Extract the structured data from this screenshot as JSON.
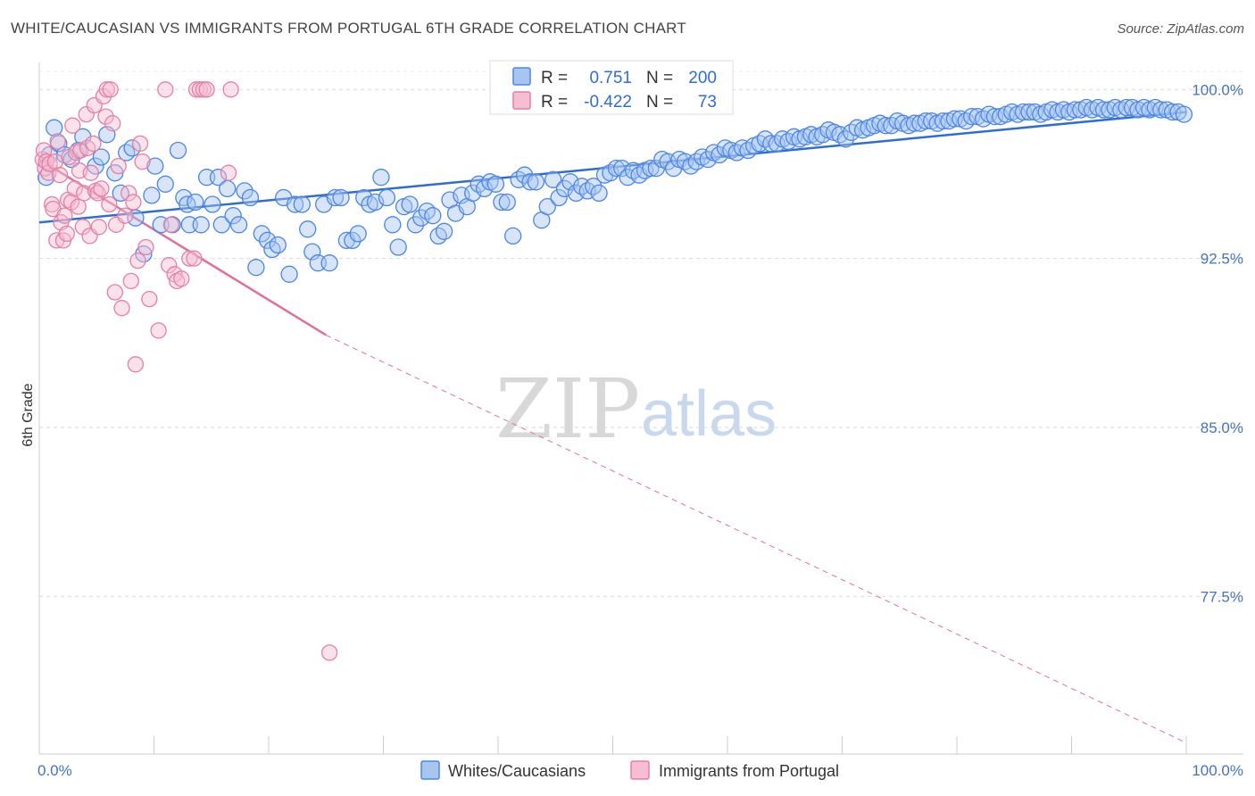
{
  "title": "WHITE/CAUCASIAN VS IMMIGRANTS FROM PORTUGAL 6TH GRADE CORRELATION CHART",
  "source": "Source: ZipAtlas.com",
  "watermark": {
    "zip": "ZIP",
    "atlas": "atlas"
  },
  "colors": {
    "blue": "#4a86e8",
    "blue_fill": "#a8c5f0",
    "blue_line": "#2f6ecf",
    "pink": "#e57fa3",
    "pink_fill": "#f7bdd0",
    "pink_line": "#e0709a",
    "grid": "#d9d9d9",
    "tick_text": "#4472c4"
  },
  "legend": {
    "r_label": "R =",
    "n_label": "N =",
    "series": [
      {
        "r": "0.751",
        "n": "200"
      },
      {
        "r": "-0.422",
        "n": "73"
      }
    ]
  },
  "chart_data": {
    "type": "scatter",
    "title": "WHITE/CAUCASIAN VS IMMIGRANTS FROM PORTUGAL 6TH GRADE CORRELATION CHART",
    "xlabel": "",
    "ylabel": "6th Grade",
    "xlim": [
      0,
      100
    ],
    "ylim": [
      70.5,
      101.2
    ],
    "x_tick_labels": [
      "0.0%",
      "100.0%"
    ],
    "y_ticks": [
      100.0,
      92.5,
      85.0,
      77.5
    ],
    "y_tick_labels": [
      "100.0%",
      "92.5%",
      "85.0%",
      "77.5%"
    ],
    "grid": true,
    "legend_position": "top-center",
    "series": [
      {
        "name": "Whites/Caucasians",
        "color": "#4a86e8",
        "trend": {
          "x": [
            0,
            100
          ],
          "y": [
            94.1,
            99.0
          ]
        },
        "points": [
          [
            0.6,
            96.1
          ],
          [
            0.9,
            97.1
          ],
          [
            1.3,
            98.3
          ],
          [
            1.7,
            97.6
          ],
          [
            2.2,
            97.1
          ],
          [
            2.8,
            96.9
          ],
          [
            3.4,
            97.3
          ],
          [
            3.8,
            97.9
          ],
          [
            4.9,
            96.6
          ],
          [
            5.4,
            97.0
          ],
          [
            5.9,
            98.0
          ],
          [
            6.6,
            96.3
          ],
          [
            7.1,
            95.4
          ],
          [
            7.6,
            97.2
          ],
          [
            8.1,
            97.4
          ],
          [
            8.4,
            94.3
          ],
          [
            9.1,
            92.7
          ],
          [
            9.8,
            95.3
          ],
          [
            10.1,
            96.6
          ],
          [
            10.6,
            94.0
          ],
          [
            11.0,
            95.8
          ],
          [
            11.6,
            94.0
          ],
          [
            12.1,
            97.3
          ],
          [
            12.6,
            95.2
          ],
          [
            12.9,
            94.9
          ],
          [
            13.1,
            94.0
          ],
          [
            13.6,
            95.0
          ],
          [
            14.1,
            94.0
          ],
          [
            14.6,
            96.1
          ],
          [
            15.1,
            94.9
          ],
          [
            15.6,
            96.1
          ],
          [
            15.9,
            94.0
          ],
          [
            16.4,
            95.6
          ],
          [
            16.9,
            94.4
          ],
          [
            17.4,
            94.0
          ],
          [
            17.9,
            95.5
          ],
          [
            18.4,
            95.2
          ],
          [
            18.9,
            92.1
          ],
          [
            19.4,
            93.6
          ],
          [
            19.9,
            93.3
          ],
          [
            20.3,
            92.9
          ],
          [
            20.8,
            93.1
          ],
          [
            21.3,
            95.2
          ],
          [
            21.8,
            91.8
          ],
          [
            22.3,
            94.9
          ],
          [
            22.9,
            94.9
          ],
          [
            23.4,
            93.8
          ],
          [
            23.8,
            92.8
          ],
          [
            24.3,
            92.3
          ],
          [
            24.8,
            94.9
          ],
          [
            25.3,
            92.3
          ],
          [
            25.8,
            95.2
          ],
          [
            26.3,
            95.2
          ],
          [
            26.8,
            93.3
          ],
          [
            27.3,
            93.3
          ],
          [
            27.8,
            93.6
          ],
          [
            28.3,
            95.2
          ],
          [
            28.8,
            94.9
          ],
          [
            29.3,
            95.0
          ],
          [
            29.8,
            96.1
          ],
          [
            30.3,
            95.2
          ],
          [
            30.8,
            94.0
          ],
          [
            31.3,
            93.0
          ],
          [
            31.8,
            94.8
          ],
          [
            32.3,
            94.9
          ],
          [
            32.8,
            94.0
          ],
          [
            33.3,
            94.3
          ],
          [
            33.8,
            94.6
          ],
          [
            34.3,
            94.4
          ],
          [
            34.8,
            93.5
          ],
          [
            35.3,
            93.7
          ],
          [
            35.8,
            95.1
          ],
          [
            36.3,
            94.5
          ],
          [
            36.8,
            95.3
          ],
          [
            37.3,
            94.8
          ],
          [
            37.8,
            95.4
          ],
          [
            38.3,
            95.8
          ],
          [
            38.8,
            95.6
          ],
          [
            39.3,
            95.9
          ],
          [
            39.8,
            95.8
          ],
          [
            40.3,
            95.0
          ],
          [
            40.8,
            95.0
          ],
          [
            41.3,
            93.5
          ],
          [
            41.8,
            96.0
          ],
          [
            42.3,
            96.2
          ],
          [
            42.8,
            95.9
          ],
          [
            43.3,
            95.9
          ],
          [
            43.8,
            94.2
          ],
          [
            44.3,
            94.8
          ],
          [
            44.8,
            96.0
          ],
          [
            45.3,
            95.2
          ],
          [
            45.8,
            95.6
          ],
          [
            46.3,
            95.9
          ],
          [
            46.8,
            95.4
          ],
          [
            47.3,
            95.7
          ],
          [
            47.8,
            95.5
          ],
          [
            48.3,
            95.7
          ],
          [
            48.8,
            95.4
          ],
          [
            49.3,
            96.2
          ],
          [
            49.8,
            96.3
          ],
          [
            50.3,
            96.5
          ],
          [
            50.8,
            96.5
          ],
          [
            51.3,
            96.1
          ],
          [
            51.8,
            96.4
          ],
          [
            52.3,
            96.2
          ],
          [
            52.8,
            96.4
          ],
          [
            53.3,
            96.5
          ],
          [
            53.8,
            96.5
          ],
          [
            54.3,
            96.9
          ],
          [
            54.8,
            96.8
          ],
          [
            55.3,
            96.5
          ],
          [
            55.8,
            96.9
          ],
          [
            56.3,
            96.8
          ],
          [
            56.8,
            96.6
          ],
          [
            57.3,
            96.8
          ],
          [
            57.8,
            97.0
          ],
          [
            58.3,
            96.9
          ],
          [
            58.8,
            97.2
          ],
          [
            59.3,
            97.1
          ],
          [
            59.8,
            97.4
          ],
          [
            60.3,
            97.3
          ],
          [
            60.8,
            97.2
          ],
          [
            61.3,
            97.4
          ],
          [
            61.8,
            97.3
          ],
          [
            62.3,
            97.5
          ],
          [
            62.8,
            97.6
          ],
          [
            63.3,
            97.8
          ],
          [
            63.8,
            97.6
          ],
          [
            64.3,
            97.6
          ],
          [
            64.8,
            97.8
          ],
          [
            65.3,
            97.7
          ],
          [
            65.8,
            97.9
          ],
          [
            66.3,
            97.8
          ],
          [
            66.8,
            97.9
          ],
          [
            67.3,
            98.0
          ],
          [
            67.8,
            97.9
          ],
          [
            68.3,
            98.0
          ],
          [
            68.8,
            98.2
          ],
          [
            69.3,
            98.1
          ],
          [
            69.8,
            98.0
          ],
          [
            70.3,
            97.8
          ],
          [
            70.8,
            98.1
          ],
          [
            71.3,
            98.3
          ],
          [
            71.8,
            98.2
          ],
          [
            72.3,
            98.3
          ],
          [
            72.8,
            98.4
          ],
          [
            73.3,
            98.5
          ],
          [
            73.8,
            98.4
          ],
          [
            74.3,
            98.4
          ],
          [
            74.8,
            98.6
          ],
          [
            75.3,
            98.5
          ],
          [
            75.8,
            98.4
          ],
          [
            76.3,
            98.5
          ],
          [
            76.8,
            98.5
          ],
          [
            77.3,
            98.6
          ],
          [
            77.8,
            98.6
          ],
          [
            78.3,
            98.5
          ],
          [
            78.8,
            98.6
          ],
          [
            79.3,
            98.6
          ],
          [
            79.8,
            98.7
          ],
          [
            80.3,
            98.7
          ],
          [
            80.8,
            98.6
          ],
          [
            81.3,
            98.8
          ],
          [
            81.8,
            98.8
          ],
          [
            82.3,
            98.7
          ],
          [
            82.8,
            98.9
          ],
          [
            83.3,
            98.8
          ],
          [
            83.8,
            98.8
          ],
          [
            84.3,
            98.9
          ],
          [
            84.8,
            99.0
          ],
          [
            85.3,
            98.9
          ],
          [
            85.8,
            99.0
          ],
          [
            86.3,
            99.0
          ],
          [
            86.8,
            99.0
          ],
          [
            87.3,
            98.9
          ],
          [
            87.8,
            99.0
          ],
          [
            88.3,
            99.1
          ],
          [
            88.8,
            99.0
          ],
          [
            89.3,
            99.1
          ],
          [
            89.8,
            99.0
          ],
          [
            90.3,
            99.1
          ],
          [
            90.8,
            99.1
          ],
          [
            91.3,
            99.2
          ],
          [
            91.8,
            99.1
          ],
          [
            92.3,
            99.2
          ],
          [
            92.8,
            99.1
          ],
          [
            93.3,
            99.1
          ],
          [
            93.8,
            99.2
          ],
          [
            94.3,
            99.1
          ],
          [
            94.8,
            99.2
          ],
          [
            95.3,
            99.2
          ],
          [
            95.8,
            99.1
          ],
          [
            96.3,
            99.2
          ],
          [
            96.8,
            99.1
          ],
          [
            97.3,
            99.2
          ],
          [
            97.8,
            99.1
          ],
          [
            98.3,
            99.1
          ],
          [
            98.8,
            99.0
          ],
          [
            99.3,
            99.0
          ],
          [
            99.8,
            98.9
          ]
        ]
      },
      {
        "name": "Immigrants from Portugal",
        "color": "#e57fa3",
        "trend": {
          "x": [
            0,
            25,
            100
          ],
          "y": [
            96.9,
            89.1,
            71.0
          ],
          "solid_until": 25
        },
        "points": [
          [
            0.3,
            96.9
          ],
          [
            0.4,
            97.3
          ],
          [
            0.5,
            96.5
          ],
          [
            0.6,
            96.8
          ],
          [
            0.8,
            96.3
          ],
          [
            0.9,
            96.7
          ],
          [
            1.1,
            94.9
          ],
          [
            1.2,
            94.7
          ],
          [
            1.4,
            96.8
          ],
          [
            1.5,
            93.3
          ],
          [
            1.6,
            97.7
          ],
          [
            1.8,
            96.2
          ],
          [
            1.9,
            94.1
          ],
          [
            2.1,
            93.3
          ],
          [
            2.2,
            94.4
          ],
          [
            2.4,
            93.6
          ],
          [
            2.5,
            95.1
          ],
          [
            2.6,
            97.0
          ],
          [
            2.8,
            95.0
          ],
          [
            2.9,
            98.4
          ],
          [
            3.1,
            95.6
          ],
          [
            3.2,
            97.2
          ],
          [
            3.4,
            94.8
          ],
          [
            3.5,
            96.4
          ],
          [
            3.6,
            97.3
          ],
          [
            3.8,
            93.9
          ],
          [
            3.9,
            95.4
          ],
          [
            4.1,
            98.9
          ],
          [
            4.2,
            97.4
          ],
          [
            4.4,
            93.5
          ],
          [
            4.5,
            96.3
          ],
          [
            4.7,
            97.6
          ],
          [
            4.8,
            99.3
          ],
          [
            4.9,
            95.5
          ],
          [
            5.1,
            95.4
          ],
          [
            5.2,
            93.9
          ],
          [
            5.4,
            95.6
          ],
          [
            5.6,
            99.7
          ],
          [
            5.8,
            98.8
          ],
          [
            5.9,
            100.0
          ],
          [
            6.1,
            94.9
          ],
          [
            6.2,
            100.0
          ],
          [
            6.4,
            98.5
          ],
          [
            6.6,
            91.0
          ],
          [
            6.7,
            94.0
          ],
          [
            6.9,
            96.6
          ],
          [
            7.2,
            90.3
          ],
          [
            7.5,
            94.4
          ],
          [
            7.8,
            95.4
          ],
          [
            8.0,
            91.5
          ],
          [
            8.2,
            95.0
          ],
          [
            8.4,
            87.8
          ],
          [
            8.6,
            92.4
          ],
          [
            8.8,
            97.6
          ],
          [
            9.0,
            96.8
          ],
          [
            9.3,
            93.0
          ],
          [
            9.6,
            90.7
          ],
          [
            10.4,
            89.3
          ],
          [
            11.0,
            100.0
          ],
          [
            11.3,
            92.2
          ],
          [
            11.5,
            94.0
          ],
          [
            11.8,
            91.8
          ],
          [
            12.0,
            91.5
          ],
          [
            12.4,
            91.6
          ],
          [
            13.1,
            92.5
          ],
          [
            13.5,
            92.5
          ],
          [
            13.7,
            100.0
          ],
          [
            14.0,
            100.0
          ],
          [
            14.3,
            100.0
          ],
          [
            14.6,
            100.0
          ],
          [
            16.5,
            96.3
          ],
          [
            16.7,
            100.0
          ],
          [
            25.3,
            75.0
          ]
        ]
      }
    ]
  },
  "bottom_legend": [
    "Whites/Caucasians",
    "Immigrants from Portugal"
  ]
}
